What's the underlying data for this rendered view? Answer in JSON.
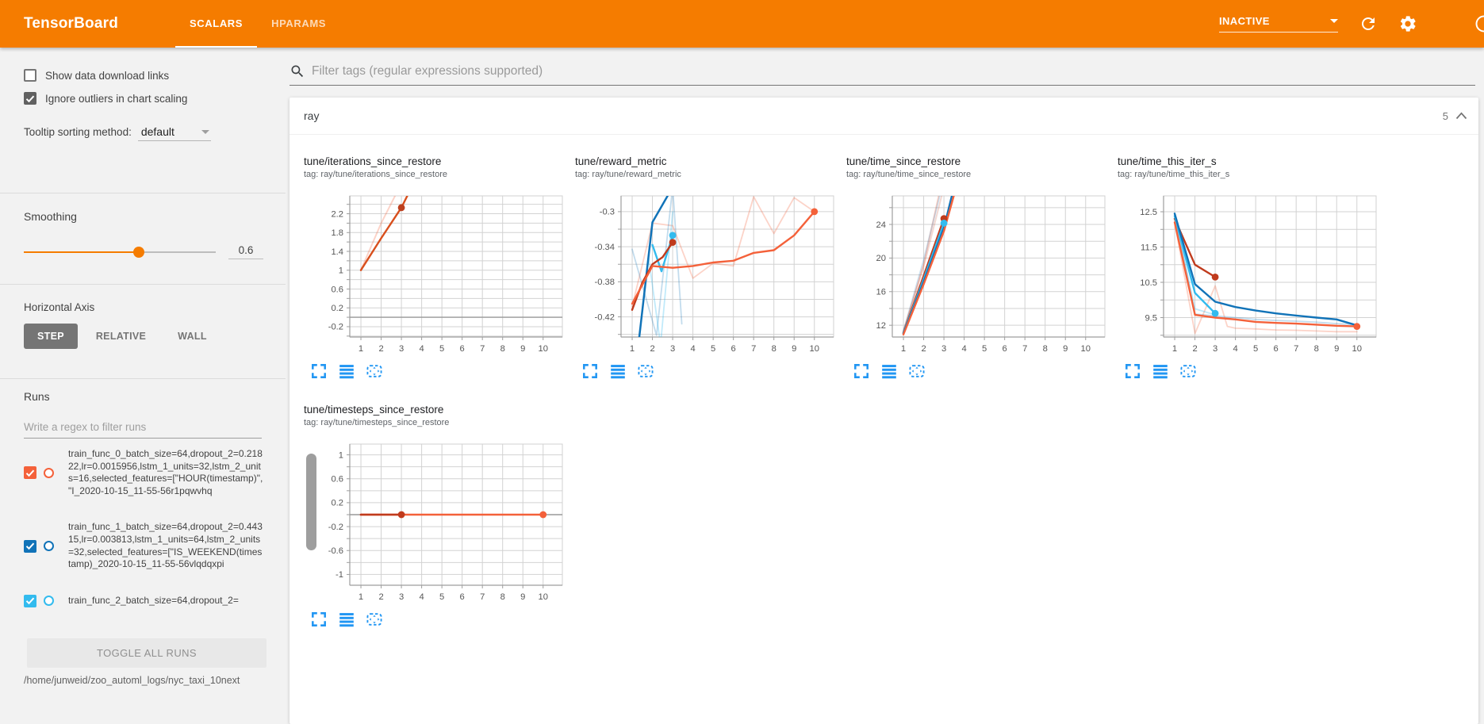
{
  "header": {
    "title": "TensorBoard",
    "tabs": [
      {
        "label": "SCALARS",
        "active": true
      },
      {
        "label": "HPARAMS",
        "active": false
      }
    ],
    "status": "INACTIVE",
    "icons": [
      "refresh-icon",
      "settings-icon",
      "help-icon"
    ]
  },
  "sidebar": {
    "show_download": {
      "label": "Show data download links",
      "checked": false
    },
    "ignore_outliers": {
      "label": "Ignore outliers in chart scaling",
      "checked": true
    },
    "tooltip_label": "Tooltip sorting method:",
    "tooltip_value": "default",
    "smoothing_label": "Smoothing",
    "smoothing_value": "0.6",
    "smoothing_percent": 60,
    "haxis_label": "Horizontal Axis",
    "haxis_options": [
      {
        "label": "STEP",
        "selected": true
      },
      {
        "label": "RELATIVE",
        "selected": false
      },
      {
        "label": "WALL",
        "selected": false
      }
    ],
    "runs_label": "Runs",
    "runs_filter_placeholder": "Write a regex to filter runs",
    "runs": [
      {
        "label": "train_func_0_batch_size=64,dropout_2=0.21822,lr=0.0015956,lstm_1_units=32,lstm_2_units=16,selected_features=[\"HOUR(timestamp)\", \"I_2020-10-15_11-55-56r1pqwvhq",
        "checked": true,
        "color": "#f4613a"
      },
      {
        "label": "train_func_1_batch_size=64,dropout_2=0.44315,lr=0.003813,lstm_1_units=64,lstm_2_units=32,selected_features=[\"IS_WEEKEND(timestamp)_2020-10-15_11-55-56vlqdqxpi",
        "checked": true,
        "color": "#1173b8"
      },
      {
        "label": "train_func_2_batch_size=64,dropout_2=",
        "checked": true,
        "color": "#33bbee"
      }
    ],
    "toggle_all": "TOGGLE ALL RUNS",
    "log_dir": "/home/junweid/zoo_automl_logs/nyc_taxi_10next"
  },
  "main": {
    "filter_placeholder": "Filter tags (regular expressions supported)",
    "section_name": "ray",
    "section_count": "5",
    "chart_actions": [
      "fullscreen-icon",
      "runs-selector-icon",
      "fit-domain-icon"
    ]
  },
  "chart_data": [
    {
      "type": "line",
      "title": "tune/iterations_since_restore",
      "tag": "tag: ray/tune/iterations_since_restore",
      "xticks": [
        1,
        2,
        3,
        4,
        5,
        6,
        7,
        8,
        9,
        10
      ],
      "xlim": [
        0.45,
        10.95
      ],
      "ylim": [
        -0.42,
        2.58
      ],
      "yticks": [
        2.2,
        1.8,
        1.4,
        1,
        0.6,
        0.2,
        -0.2
      ],
      "ygrid_step": 0.2,
      "series": [
        {
          "name": "zero-baseline",
          "color": "#999999",
          "width": 1.4,
          "opacity": 1,
          "points": [
            [
              0.45,
              0
            ],
            [
              10.95,
              0
            ]
          ]
        },
        {
          "name": "train_func_0 raw",
          "color": "#f4613a",
          "width": 2,
          "opacity": 0.28,
          "points": [
            [
              1,
              1
            ],
            [
              2,
              2
            ],
            [
              2.85,
              2.72
            ]
          ]
        },
        {
          "name": "train_func_0 smoothed",
          "color": "#d84f1d",
          "width": 2.4,
          "opacity": 1,
          "points": [
            [
              1,
              1
            ],
            [
              2,
              1.68
            ],
            [
              3,
              2.33
            ],
            [
              3.45,
              2.72
            ]
          ],
          "dot": [
            3,
            2.33
          ],
          "dot_color": "#bc3f1e"
        }
      ]
    },
    {
      "type": "line",
      "title": "tune/reward_metric",
      "tag": "tag: ray/tune/reward_metric",
      "xticks": [
        1,
        2,
        3,
        4,
        5,
        6,
        7,
        8,
        9,
        10
      ],
      "xlim": [
        0.45,
        10.95
      ],
      "ylim": [
        -0.443,
        -0.282
      ],
      "yticks": [
        -0.3,
        -0.34,
        -0.38,
        -0.42
      ],
      "ygrid_step": 0.02,
      "series": [
        {
          "name": "train_func_0 raw",
          "color": "#f4613a",
          "width": 1.8,
          "opacity": 0.28,
          "points": [
            [
              1,
              -0.408
            ],
            [
              2,
              -0.313
            ],
            [
              3,
              -0.316
            ],
            [
              4,
              -0.376
            ],
            [
              5,
              -0.359
            ],
            [
              6,
              -0.362
            ],
            [
              7,
              -0.283
            ],
            [
              8,
              -0.325
            ],
            [
              9,
              -0.284
            ],
            [
              10,
              -0.3
            ]
          ]
        },
        {
          "name": "train_func_1 raw",
          "color": "#1173b8",
          "width": 1.8,
          "opacity": 0.25,
          "points": [
            [
              1,
              -0.343
            ],
            [
              2.2,
              -0.441
            ],
            [
              3,
              -0.272
            ],
            [
              3.45,
              -0.428
            ]
          ]
        },
        {
          "name": "train_func_2 raw",
          "color": "#33bbee",
          "width": 1.8,
          "opacity": 0.3,
          "points": [
            [
              1.8,
              -0.35
            ],
            [
              2.4,
              -0.452
            ],
            [
              3,
              -0.3
            ]
          ]
        },
        {
          "name": "train_func_1 smoothed",
          "color": "#1173b8",
          "width": 2.5,
          "opacity": 1,
          "points": [
            [
              1.35,
              -0.443
            ],
            [
              2,
              -0.312
            ],
            [
              2.75,
              -0.282
            ]
          ]
        },
        {
          "name": "train_func_2 smoothed",
          "color": "#33bbee",
          "width": 2.4,
          "opacity": 1,
          "points": [
            [
              2,
              -0.338
            ],
            [
              2.45,
              -0.368
            ],
            [
              3,
              -0.327
            ]
          ],
          "dot": [
            3,
            -0.327
          ]
        },
        {
          "name": "train_func_4 smoothed",
          "color": "#c03b1d",
          "width": 2.4,
          "opacity": 1,
          "points": [
            [
              1,
              -0.412
            ],
            [
              1.5,
              -0.381
            ],
            [
              2,
              -0.36
            ],
            [
              2.5,
              -0.352
            ],
            [
              3,
              -0.335
            ]
          ],
          "dot": [
            3,
            -0.335
          ]
        },
        {
          "name": "train_func_0 smoothed",
          "color": "#f4613a",
          "width": 2.4,
          "opacity": 1,
          "points": [
            [
              1,
              -0.405
            ],
            [
              2,
              -0.362
            ],
            [
              3,
              -0.364
            ],
            [
              4,
              -0.362
            ],
            [
              5,
              -0.358
            ],
            [
              6,
              -0.356
            ],
            [
              7,
              -0.347
            ],
            [
              8,
              -0.344
            ],
            [
              9,
              -0.327
            ],
            [
              10,
              -0.3
            ]
          ],
          "dot": [
            10,
            -0.3
          ]
        }
      ]
    },
    {
      "type": "line",
      "title": "tune/time_since_restore",
      "tag": "tag: ray/tune/time_since_restore",
      "xticks": [
        1,
        2,
        3,
        4,
        5,
        6,
        7,
        8,
        9,
        10
      ],
      "xlim": [
        0.45,
        10.95
      ],
      "ylim": [
        10.6,
        27.4
      ],
      "yticks": [
        24,
        20,
        16,
        12
      ],
      "ygrid_step": 2,
      "series": [
        {
          "name": "train_func_0 raw",
          "color": "#f4613a",
          "width": 2,
          "opacity": 0.28,
          "points": [
            [
              1,
              11.2
            ],
            [
              2,
              19.3
            ],
            [
              2.75,
              27.5
            ]
          ]
        },
        {
          "name": "train_func_1 raw",
          "color": "#1173b8",
          "width": 2,
          "opacity": 0.2,
          "points": [
            [
              1,
              11.3
            ],
            [
              2,
              19.8
            ],
            [
              2.8,
              27.5
            ]
          ]
        },
        {
          "name": "train_func_4 raw",
          "color": "#c03b1d",
          "width": 2,
          "opacity": 0.2,
          "points": [
            [
              1,
              11.25
            ],
            [
              2,
              19
            ],
            [
              2.9,
              27.5
            ]
          ]
        },
        {
          "name": "train_func_4 smoothed",
          "color": "#c03b1d",
          "width": 2.4,
          "opacity": 1,
          "points": [
            [
              1,
              11.1
            ],
            [
              2,
              17.9
            ],
            [
              3,
              24.7
            ]
          ],
          "dot": [
            3,
            24.7
          ]
        },
        {
          "name": "train_func_2 smoothed",
          "color": "#33bbee",
          "width": 2.4,
          "opacity": 1,
          "points": [
            [
              1,
              11.05
            ],
            [
              2,
              17.5
            ],
            [
              3,
              24.15
            ]
          ],
          "dot": [
            3,
            24.15
          ]
        },
        {
          "name": "train_func_1 smoothed",
          "color": "#1173b8",
          "width": 2.4,
          "opacity": 1,
          "points": [
            [
              1,
              11
            ],
            [
              2,
              17.2
            ],
            [
              3,
              23.6
            ],
            [
              3.4,
              27.5
            ]
          ]
        },
        {
          "name": "train_func_0 smoothed",
          "color": "#f4613a",
          "width": 2.4,
          "opacity": 1,
          "points": [
            [
              1,
              10.9
            ],
            [
              2,
              16.9
            ],
            [
              3,
              23.2
            ],
            [
              3.5,
              27.5
            ]
          ]
        }
      ]
    },
    {
      "type": "line",
      "title": "tune/time_this_iter_s",
      "tag": "tag: ray/tune/time_this_iter_s",
      "xticks": [
        1,
        2,
        3,
        4,
        5,
        6,
        7,
        8,
        9,
        10
      ],
      "xlim": [
        0.45,
        10.95
      ],
      "ylim": [
        8.95,
        12.95
      ],
      "yticks": [
        12.5,
        11.5,
        10.5,
        9.5
      ],
      "ygrid_step": 0.5,
      "series": [
        {
          "name": "train_func_0 raw",
          "color": "#f4613a",
          "width": 1.8,
          "opacity": 0.28,
          "points": [
            [
              1,
              12.2
            ],
            [
              2,
              9.05
            ],
            [
              3,
              10.4
            ],
            [
              3.6,
              9.25
            ],
            [
              4,
              9.2
            ],
            [
              5,
              9.18
            ],
            [
              6,
              9.15
            ],
            [
              7,
              9.14
            ],
            [
              8,
              9.12
            ],
            [
              9,
              9.1
            ],
            [
              10,
              9.1
            ]
          ]
        },
        {
          "name": "train_func_1 raw",
          "color": "#1173b8",
          "width": 1.8,
          "opacity": 0.25,
          "points": [
            [
              1,
              12.45
            ],
            [
              2,
              9.6
            ],
            [
              3,
              9.55
            ],
            [
              4,
              9.5
            ],
            [
              5,
              9.45
            ],
            [
              6,
              9.42
            ],
            [
              7,
              9.4
            ],
            [
              8,
              9.37
            ],
            [
              9,
              9.33
            ],
            [
              10,
              9.3
            ]
          ]
        },
        {
          "name": "train_func_2 raw",
          "color": "#33bbee",
          "width": 1.8,
          "opacity": 0.3,
          "points": [
            [
              1,
              12.4
            ],
            [
              2,
              9.75
            ],
            [
              3,
              9.58
            ]
          ]
        },
        {
          "name": "train_func_4 smoothed",
          "color": "#c03b1d",
          "width": 2.4,
          "opacity": 1,
          "points": [
            [
              1,
              12.3
            ],
            [
              2,
              11
            ],
            [
              3,
              10.65
            ]
          ],
          "dot": [
            3,
            10.65
          ]
        },
        {
          "name": "train_func_2 smoothed",
          "color": "#33bbee",
          "width": 2.4,
          "opacity": 1,
          "points": [
            [
              1,
              12.38
            ],
            [
              2,
              10.2
            ],
            [
              3,
              9.62
            ]
          ],
          "dot": [
            3,
            9.62
          ]
        },
        {
          "name": "train_func_1 smoothed",
          "color": "#1173b8",
          "width": 2.4,
          "opacity": 1,
          "points": [
            [
              1,
              12.45
            ],
            [
              2,
              10.45
            ],
            [
              3,
              9.95
            ],
            [
              4,
              9.8
            ],
            [
              5,
              9.7
            ],
            [
              6,
              9.62
            ],
            [
              7,
              9.56
            ],
            [
              8,
              9.5
            ],
            [
              9,
              9.45
            ],
            [
              10,
              9.28
            ]
          ]
        },
        {
          "name": "train_func_0 smoothed",
          "color": "#f4613a",
          "width": 2.4,
          "opacity": 1,
          "points": [
            [
              1,
              12.2
            ],
            [
              2,
              9.58
            ],
            [
              3,
              9.5
            ],
            [
              4,
              9.45
            ],
            [
              5,
              9.38
            ],
            [
              6,
              9.35
            ],
            [
              7,
              9.33
            ],
            [
              8,
              9.3
            ],
            [
              9,
              9.27
            ],
            [
              10,
              9.25
            ]
          ],
          "dot": [
            10,
            9.25
          ]
        }
      ]
    },
    {
      "type": "line",
      "title": "tune/timesteps_since_restore",
      "tag": "tag: ray/tune/timesteps_since_restore",
      "xticks": [
        1,
        2,
        3,
        4,
        5,
        6,
        7,
        8,
        9,
        10
      ],
      "xlim": [
        0.45,
        10.95
      ],
      "ylim": [
        -1.18,
        1.18
      ],
      "yticks": [
        1,
        0.6,
        0.2,
        -0.2,
        -0.6,
        -1
      ],
      "ygrid_step": 0.2,
      "series": [
        {
          "name": "zero-baseline",
          "color": "#999999",
          "width": 1.5,
          "opacity": 1,
          "points": [
            [
              0.45,
              0
            ],
            [
              10.95,
              0
            ]
          ]
        },
        {
          "name": "train_func_0 smoothed",
          "color": "#f4613a",
          "width": 2.6,
          "opacity": 1,
          "points": [
            [
              1,
              0
            ],
            [
              10,
              0
            ]
          ],
          "dot": [
            10,
            0
          ]
        },
        {
          "name": "train_func_4 smoothed",
          "color": "#c03b1d",
          "width": 2.6,
          "opacity": 1,
          "points": [
            [
              1,
              0
            ],
            [
              3,
              0
            ]
          ],
          "dot": [
            3,
            0
          ]
        }
      ]
    }
  ]
}
